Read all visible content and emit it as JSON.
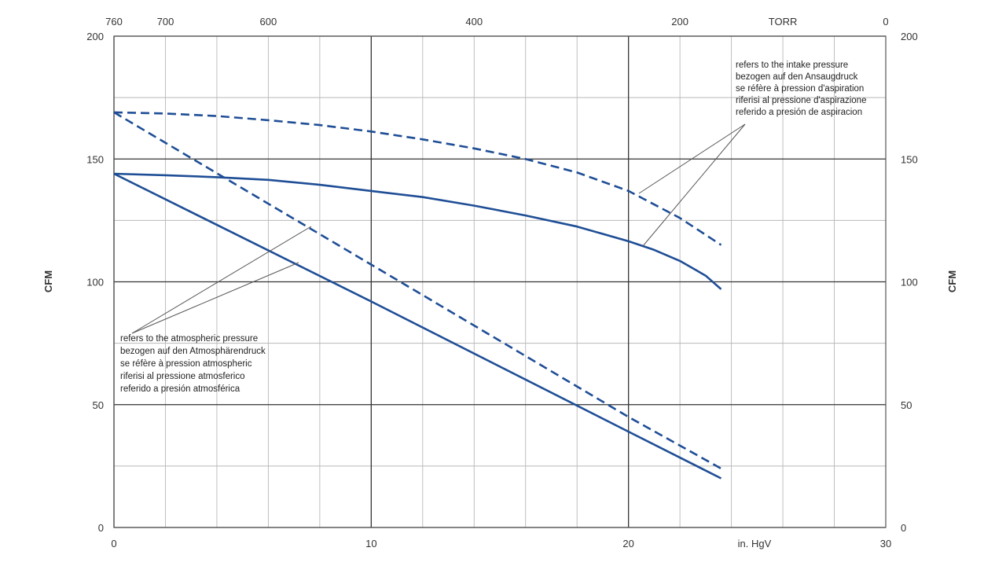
{
  "chart_data": {
    "type": "line",
    "xlim": [
      0,
      30
    ],
    "ylim": [
      0,
      200
    ],
    "xlabel": "in. HgV",
    "ylabel": "CFM",
    "y2label": "CFM",
    "x_major_ticks": [
      0,
      10,
      20
    ],
    "x_minor_ticks": [
      2,
      4,
      6,
      8,
      12,
      14,
      16,
      18,
      22,
      24,
      26,
      28
    ],
    "y_major_ticks": [
      0,
      50,
      100,
      150,
      200
    ],
    "y_minor_ticks": [
      25,
      75,
      125,
      175
    ],
    "x_tick_labels": [
      "0",
      "10",
      "20",
      "30"
    ],
    "y_tick_labels": [
      "0",
      "50",
      "100",
      "150",
      "200"
    ],
    "top_axis": {
      "ticks": [
        {
          "label": "760",
          "at": 0
        },
        {
          "label": "700",
          "at": 2
        },
        {
          "label": "600",
          "at": 6
        },
        {
          "label": "400",
          "at": 14
        },
        {
          "label": "200",
          "at": 22
        },
        {
          "label": "TORR",
          "at": 26
        },
        {
          "label": "0",
          "at": 30
        }
      ]
    },
    "grid": true,
    "series": [
      {
        "style": "dashed",
        "color": "#1f4e96",
        "x": [
          0,
          2,
          4,
          6,
          8,
          10,
          12,
          14,
          16,
          18,
          20,
          22,
          23.6
        ],
        "y": [
          169,
          168.5,
          167.5,
          165.8,
          163.8,
          161.2,
          158,
          154.3,
          150,
          144.5,
          137,
          126,
          115
        ]
      },
      {
        "style": "solid",
        "color": "#1f4e96",
        "x": [
          0,
          2,
          4,
          6,
          8,
          10,
          12,
          14,
          16,
          18,
          20,
          21,
          22,
          23,
          23.6
        ],
        "y": [
          144,
          143.4,
          142.6,
          141.5,
          139.5,
          137,
          134.5,
          131,
          127,
          122.5,
          116.5,
          113,
          108.5,
          102.5,
          97
        ]
      },
      {
        "style": "dashed",
        "color": "#1f4e96",
        "x": [
          0,
          10,
          20,
          23.6
        ],
        "y": [
          169,
          107,
          45,
          24
        ]
      },
      {
        "style": "solid",
        "color": "#1f4e96",
        "x": [
          0,
          10,
          20,
          23.6
        ],
        "y": [
          144,
          92,
          39,
          20
        ]
      }
    ],
    "annotations": [
      {
        "lines": [
          "refers to the intake pressure",
          "bezogen auf den Ansaugdruck",
          "se réfère à pression d'aspiration",
          "riferisi al pressione d'aspirazione",
          "referido a presión de aspiracion"
        ],
        "position": "upper right",
        "points_to": "upper curves"
      },
      {
        "lines": [
          "refers to the atmospheric pressure",
          "bezogen auf den Atmosphärendruck",
          "se réfère à pression atmospheric",
          "riferisi al pressione atmosferico",
          "referido a presión atmosférica"
        ],
        "position": "lower left",
        "points_to": "straight lines"
      }
    ]
  }
}
